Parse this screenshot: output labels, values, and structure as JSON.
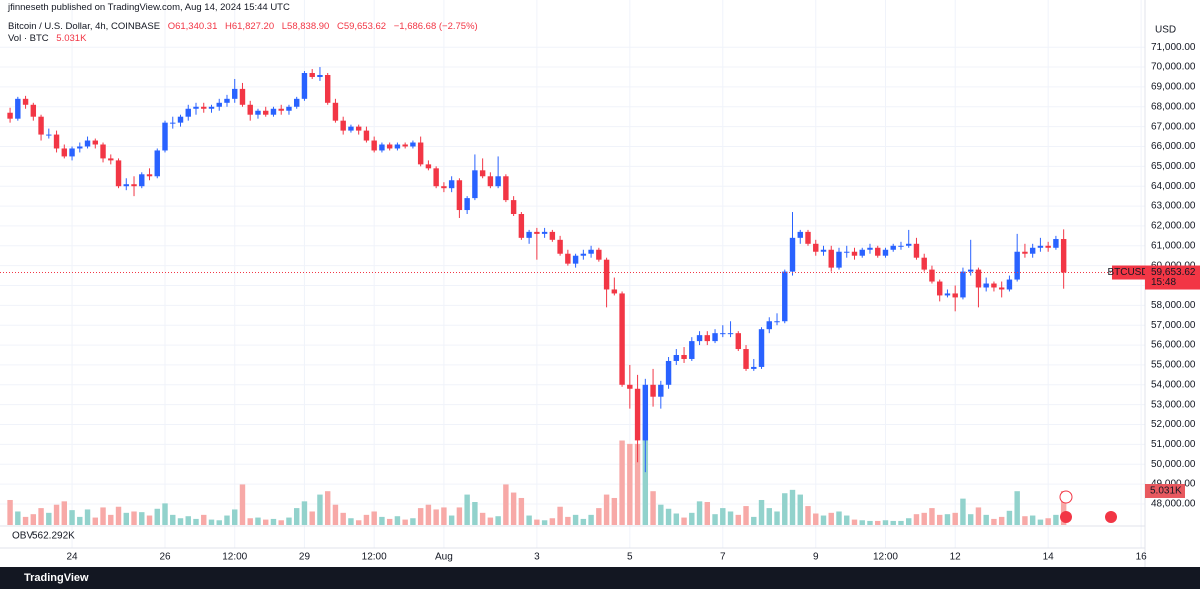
{
  "header": {
    "publisher": "jfinneseth published on TradingView.com, Aug 14, 2024 15:44 UTC"
  },
  "chart_data": {
    "type": "candlestick",
    "symbol": "Bitcoin / U.S. Dollar, 4h, COINBASE",
    "ohlc_legend": [
      "O61,340.31",
      "H61,827.20",
      "L58,838.90",
      "C59,653.62",
      "−1,686.68 (−2.75%)"
    ],
    "volume_legend": {
      "label": "Vol · BTC",
      "value": "5.031K"
    },
    "currency": "USD",
    "obv": {
      "label": "OBV",
      "value": "562.292K"
    },
    "last_price": {
      "symbol": "BTCUSD",
      "price": "59,653.62",
      "countdown": "15:48"
    },
    "volume_tag": "5.031K",
    "up_color": "#2962ff",
    "down_color": "#f23645",
    "volume_up_color": "#92d2cc",
    "volume_down_color": "#f7a9a7",
    "open": [
      67700,
      67400,
      68400,
      68100,
      67500,
      66600,
      66600,
      65900,
      65500,
      65900,
      66000,
      66300,
      66100,
      65400,
      65300,
      64000,
      64100,
      64000,
      64600,
      64500,
      65800,
      67200,
      67200,
      67500,
      67900,
      68000,
      67900,
      68000,
      68200,
      68400,
      68900,
      68100,
      67600,
      67800,
      67600,
      67900,
      67800,
      68000,
      68400,
      69700,
      69500,
      69600,
      68200,
      67300,
      66800,
      67000,
      66800,
      66300,
      65800,
      66100,
      65900,
      66100,
      66000,
      66200,
      65100,
      64900,
      64000,
      63900,
      64300,
      62800,
      63400,
      64800,
      64500,
      64000,
      64500,
      63300,
      62600,
      61400,
      61700,
      61600,
      61700,
      61300,
      60600,
      60100,
      60500,
      60600,
      60800,
      60300,
      58800,
      58600,
      54000,
      53800,
      51200,
      54000,
      53400,
      54000,
      55200,
      55500,
      55300,
      56200,
      56500,
      56200,
      56600,
      56600,
      56600,
      55800,
      54800,
      54900,
      56800,
      57200,
      57200,
      59700,
      61400,
      61700,
      61100,
      60700,
      60800,
      59900,
      60700,
      60700,
      60500,
      60800,
      60900,
      60500,
      60800,
      61000,
      61000,
      61100,
      60400,
      59800,
      59200,
      58500,
      58600,
      58400,
      59700,
      59800,
      58900,
      59100,
      58900,
      58800,
      59300,
      60700,
      60600,
      60900,
      61000,
      60900,
      61340.31
    ],
    "high": [
      67950,
      68500,
      68550,
      68200,
      67600,
      66900,
      66800,
      66100,
      66000,
      66200,
      66500,
      66400,
      66200,
      65600,
      65400,
      64400,
      64500,
      64700,
      64900,
      65900,
      67300,
      67500,
      67600,
      68100,
      68200,
      68200,
      68100,
      68400,
      68600,
      69400,
      69200,
      68300,
      67900,
      68000,
      68000,
      68100,
      68100,
      68500,
      69800,
      69900,
      70000,
      69700,
      68400,
      67500,
      67100,
      67100,
      67000,
      66500,
      66200,
      66200,
      66200,
      66200,
      66300,
      66500,
      65300,
      65000,
      64200,
      64500,
      64400,
      63500,
      65600,
      65400,
      64700,
      65500,
      64600,
      63500,
      62700,
      61800,
      61900,
      61900,
      61800,
      61500,
      60800,
      60600,
      60800,
      61000,
      60900,
      60400,
      59400,
      58700,
      55000,
      54500,
      54300,
      54800,
      54200,
      55400,
      55800,
      55900,
      56400,
      56700,
      56700,
      56800,
      57000,
      57200,
      56700,
      56000,
      55300,
      56900,
      57400,
      57600,
      59800,
      62700,
      61800,
      61800,
      61300,
      61000,
      61000,
      60900,
      61000,
      60900,
      60900,
      61100,
      61000,
      60900,
      61100,
      61200,
      61800,
      61400,
      60600,
      60000,
      59300,
      58800,
      59000,
      59900,
      61300,
      59900,
      59400,
      59200,
      59200,
      59500,
      61600,
      61100,
      61100,
      61400,
      61200,
      61500,
      61827.2
    ],
    "low": [
      67200,
      67300,
      67900,
      67300,
      66300,
      66400,
      65700,
      65400,
      65300,
      65700,
      65900,
      65900,
      65200,
      65100,
      63900,
      63800,
      63500,
      63900,
      64300,
      64400,
      65700,
      66900,
      67000,
      67300,
      67600,
      67700,
      67700,
      67800,
      68000,
      68200,
      68000,
      67300,
      67400,
      67500,
      67500,
      67600,
      67600,
      67900,
      68300,
      69400,
      69300,
      68100,
      67200,
      66600,
      66700,
      66600,
      66200,
      65700,
      65700,
      65800,
      65800,
      65900,
      65900,
      65000,
      64800,
      63900,
      63700,
      63700,
      62400,
      62600,
      63300,
      64400,
      63900,
      63900,
      63200,
      62500,
      61300,
      61100,
      60300,
      61400,
      61200,
      60500,
      60000,
      59900,
      60300,
      60400,
      60200,
      57900,
      58500,
      53900,
      52800,
      50100,
      49600,
      52900,
      52800,
      53800,
      55000,
      55100,
      55200,
      56000,
      56000,
      56100,
      56400,
      56400,
      55700,
      54700,
      54700,
      54800,
      56600,
      57000,
      57100,
      59500,
      61100,
      61000,
      60500,
      60500,
      59700,
      59800,
      60400,
      60300,
      60400,
      60600,
      60400,
      60400,
      60700,
      60800,
      60900,
      60300,
      59700,
      59100,
      58200,
      58400,
      57700,
      58300,
      59500,
      57900,
      58700,
      58700,
      58400,
      58700,
      59200,
      60400,
      60400,
      60700,
      60700,
      60800,
      58838.9
    ],
    "close": [
      67400,
      68400,
      68100,
      67500,
      66600,
      66600,
      65900,
      65500,
      65900,
      66000,
      66300,
      66100,
      65400,
      65300,
      64000,
      64100,
      64000,
      64600,
      64500,
      65800,
      67200,
      67200,
      67500,
      67900,
      68000,
      67900,
      68000,
      68200,
      68400,
      68900,
      68100,
      67600,
      67800,
      67600,
      67900,
      67800,
      68000,
      68400,
      69700,
      69500,
      69600,
      68200,
      67300,
      66800,
      67000,
      66800,
      66300,
      65800,
      66100,
      65900,
      66100,
      66000,
      66200,
      65100,
      64900,
      64000,
      63900,
      64300,
      62800,
      63400,
      64800,
      64500,
      64000,
      64500,
      63300,
      62600,
      61400,
      61700,
      61600,
      61700,
      61300,
      60600,
      60100,
      60500,
      60600,
      60800,
      60300,
      58800,
      58600,
      54000,
      53800,
      51200,
      54000,
      53400,
      54000,
      55200,
      55500,
      55300,
      56200,
      56500,
      56200,
      56600,
      56600,
      56600,
      55800,
      54800,
      54900,
      56800,
      57200,
      57200,
      59700,
      61400,
      61700,
      61100,
      60700,
      60800,
      59900,
      60700,
      60700,
      60500,
      60800,
      60900,
      60500,
      60800,
      61000,
      61000,
      61100,
      60400,
      59800,
      59200,
      58500,
      58600,
      58400,
      59700,
      59800,
      58900,
      59100,
      58900,
      58800,
      59300,
      60700,
      60600,
      60900,
      61000,
      60900,
      61340,
      59653.62
    ],
    "volume": [
      3700,
      2000,
      1200,
      1600,
      2500,
      1800,
      3000,
      3500,
      2200,
      1200,
      2300,
      1100,
      2600,
      1500,
      2700,
      1800,
      2000,
      1900,
      1400,
      2400,
      3200,
      1500,
      1000,
      1300,
      900,
      1500,
      800,
      700,
      1400,
      2300,
      6000,
      1000,
      1100,
      800,
      900,
      700,
      1100,
      2500,
      3500,
      2000,
      4500,
      5000,
      3000,
      1800,
      1000,
      700,
      1500,
      2000,
      1200,
      900,
      1300,
      800,
      1000,
      2500,
      3000,
      2300,
      2600,
      1400,
      2600,
      4500,
      3400,
      1800,
      1100,
      1300,
      6000,
      4800,
      4000,
      1400,
      800,
      700,
      1000,
      2700,
      1200,
      1500,
      900,
      1500,
      2500,
      4500,
      4000,
      12500,
      12000,
      12000,
      15000,
      5000,
      3000,
      2400,
      1700,
      1100,
      1800,
      3500,
      3400,
      1600,
      2500,
      2000,
      1500,
      2800,
      1200,
      3700,
      2500,
      2000,
      4700,
      5200,
      4500,
      2800,
      1700,
      1400,
      1800,
      2000,
      1400,
      800,
      700,
      600,
      600,
      700,
      600,
      600,
      1000,
      1600,
      1800,
      2500,
      1500,
      1600,
      1800,
      3900,
      1600,
      2600,
      1500,
      900,
      1200,
      2100,
      5000,
      1300,
      1400,
      800,
      1000,
      1500,
      5031
    ],
    "xlim": [
      -1.3,
      146.5
    ],
    "xticks": [
      {
        "value": 8,
        "label": "24"
      },
      {
        "value": 20,
        "label": "26"
      },
      {
        "value": 29,
        "label": "12:00"
      },
      {
        "value": 38,
        "label": "29"
      },
      {
        "value": 47,
        "label": "12:00"
      },
      {
        "value": 56,
        "label": "Aug"
      },
      {
        "value": 68,
        "label": "3"
      },
      {
        "value": 80,
        "label": "5"
      },
      {
        "value": 92,
        "label": "7"
      },
      {
        "value": 104,
        "label": "9"
      },
      {
        "value": 113,
        "label": "12:00"
      },
      {
        "value": 122,
        "label": "12"
      },
      {
        "value": 134,
        "label": "14"
      },
      {
        "value": 146,
        "label": "16"
      }
    ],
    "ylim": [
      46940,
      72470
    ],
    "yticks": [
      {
        "value": 48000,
        "label": "48,000.00"
      },
      {
        "value": 49000,
        "label": "49,000.00"
      },
      {
        "value": 50000,
        "label": "50,000.00"
      },
      {
        "value": 51000,
        "label": "51,000.00"
      },
      {
        "value": 52000,
        "label": "52,000.00"
      },
      {
        "value": 53000,
        "label": "53,000.00"
      },
      {
        "value": 54000,
        "label": "54,000.00"
      },
      {
        "value": 55000,
        "label": "55,000.00"
      },
      {
        "value": 56000,
        "label": "56,000.00"
      },
      {
        "value": 57000,
        "label": "57,000.00"
      },
      {
        "value": 58000,
        "label": "58,000.00"
      },
      {
        "value": 59000,
        "label": "59,000.00"
      },
      {
        "value": 60000,
        "label": "60,000.00"
      },
      {
        "value": 61000,
        "label": "61,000.00"
      },
      {
        "value": 62000,
        "label": "62,000.00"
      },
      {
        "value": 63000,
        "label": "63,000.00"
      },
      {
        "value": 64000,
        "label": "64,000.00"
      },
      {
        "value": 65000,
        "label": "65,000.00"
      },
      {
        "value": 66000,
        "label": "66,000.00"
      },
      {
        "value": 67000,
        "label": "67,000.00"
      },
      {
        "value": 68000,
        "label": "68,000.00"
      },
      {
        "value": 69000,
        "label": "69,000.00"
      },
      {
        "value": 70000,
        "label": "70,000.00"
      },
      {
        "value": 71000,
        "label": "71,000.00"
      }
    ],
    "y2lim": [
      0,
      75000
    ],
    "grid": true
  },
  "footer": {
    "brand": "TradingView"
  }
}
